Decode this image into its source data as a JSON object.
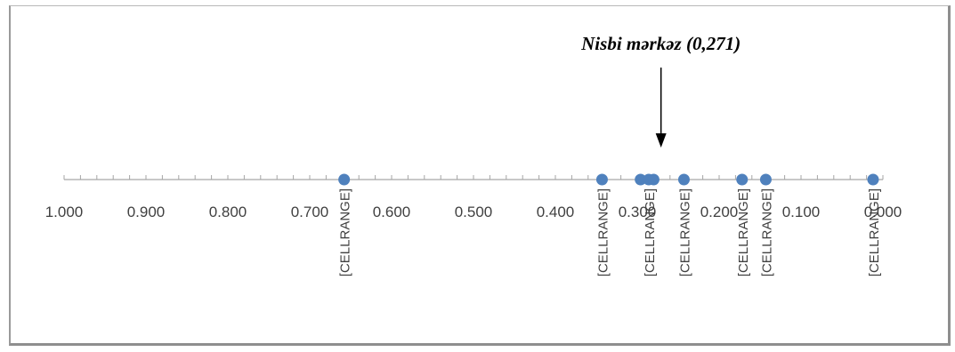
{
  "chart_data": {
    "type": "scatter",
    "axis": "reversed",
    "xlim": [
      0.0,
      1.0
    ],
    "x_ticks": [
      "1.000",
      "0.900",
      "0.800",
      "0.700",
      "0.600",
      "0.500",
      "0.400",
      "0.300",
      "0.200",
      "0.100",
      "0.000"
    ],
    "points": [
      {
        "x": 0.658,
        "label": "[CELLRANGE]"
      },
      {
        "x": 0.343,
        "label": "[CELLRANGE]"
      },
      {
        "x": 0.296,
        "label": ""
      },
      {
        "x": 0.286,
        "label": "[CELLRANGE]"
      },
      {
        "x": 0.28,
        "label": ""
      },
      {
        "x": 0.243,
        "label": "[CELLRANGE]"
      },
      {
        "x": 0.172,
        "label": "[CELLRANGE]"
      },
      {
        "x": 0.143,
        "label": "[CELLRANGE]"
      },
      {
        "x": 0.012,
        "label": "[CELLRANGE]"
      }
    ],
    "point_color": "#4f81bd",
    "axis_color": "#a6a6a6",
    "grid": false,
    "legend": "none",
    "annotation": {
      "text": "Nisbi mərkəz (0,271)",
      "x": 0.271
    }
  }
}
